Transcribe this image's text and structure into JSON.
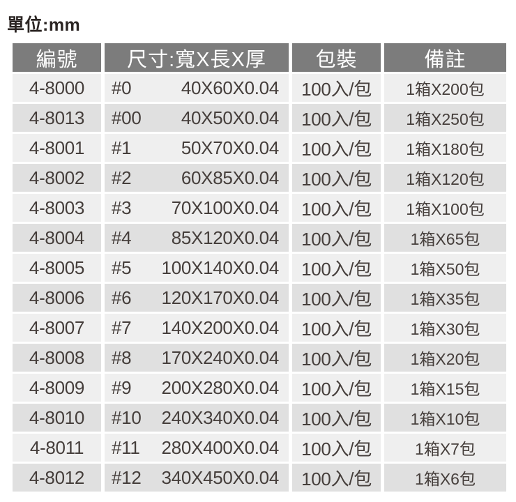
{
  "unit_label": "單位:mm",
  "table": {
    "headers": {
      "code": "編號",
      "size": "尺寸:寬X長X厚",
      "packaging": "包裝",
      "remark": "備註"
    },
    "rows": [
      {
        "code": "4-8000",
        "size_no": "#0",
        "size": "40X60X0.04",
        "pack": "100入/包",
        "note": "1箱X200包"
      },
      {
        "code": "4-8013",
        "size_no": "#00",
        "size": "40X50X0.04",
        "pack": "100入/包",
        "note": "1箱X250包"
      },
      {
        "code": "4-8001",
        "size_no": "#1",
        "size": "50X70X0.04",
        "pack": "100入/包",
        "note": "1箱X180包"
      },
      {
        "code": "4-8002",
        "size_no": "#2",
        "size": "60X85X0.04",
        "pack": "100入/包",
        "note": "1箱X120包"
      },
      {
        "code": "4-8003",
        "size_no": "#3",
        "size": "70X100X0.04",
        "pack": "100入/包",
        "note": "1箱X100包"
      },
      {
        "code": "4-8004",
        "size_no": "#4",
        "size": "85X120X0.04",
        "pack": "100入/包",
        "note": "1箱X65包"
      },
      {
        "code": "4-8005",
        "size_no": "#5",
        "size": "100X140X0.04",
        "pack": "100入/包",
        "note": "1箱X50包"
      },
      {
        "code": "4-8006",
        "size_no": "#6",
        "size": "120X170X0.04",
        "pack": "100入/包",
        "note": "1箱X35包"
      },
      {
        "code": "4-8007",
        "size_no": "#7",
        "size": "140X200X0.04",
        "pack": "100入/包",
        "note": "1箱X30包"
      },
      {
        "code": "4-8008",
        "size_no": "#8",
        "size": "170X240X0.04",
        "pack": "100入/包",
        "note": "1箱X20包"
      },
      {
        "code": "4-8009",
        "size_no": "#9",
        "size": "200X280X0.04",
        "pack": "100入/包",
        "note": "1箱X15包"
      },
      {
        "code": "4-8010",
        "size_no": "#10",
        "size": "240X340X0.04",
        "pack": "100入/包",
        "note": "1箱X10包"
      },
      {
        "code": "4-8011",
        "size_no": "#11",
        "size": "280X400X0.04",
        "pack": "100入/包",
        "note": "1箱X7包"
      },
      {
        "code": "4-8012",
        "size_no": "#12",
        "size": "340X450X0.04",
        "pack": "100入/包",
        "note": "1箱X6包"
      }
    ]
  },
  "colors": {
    "header_bg": "#7c7c7c",
    "header_text": "#ffffff",
    "row_light": "#efefef",
    "row_dark": "#e0e0e0",
    "data_text": "#453e3b"
  }
}
